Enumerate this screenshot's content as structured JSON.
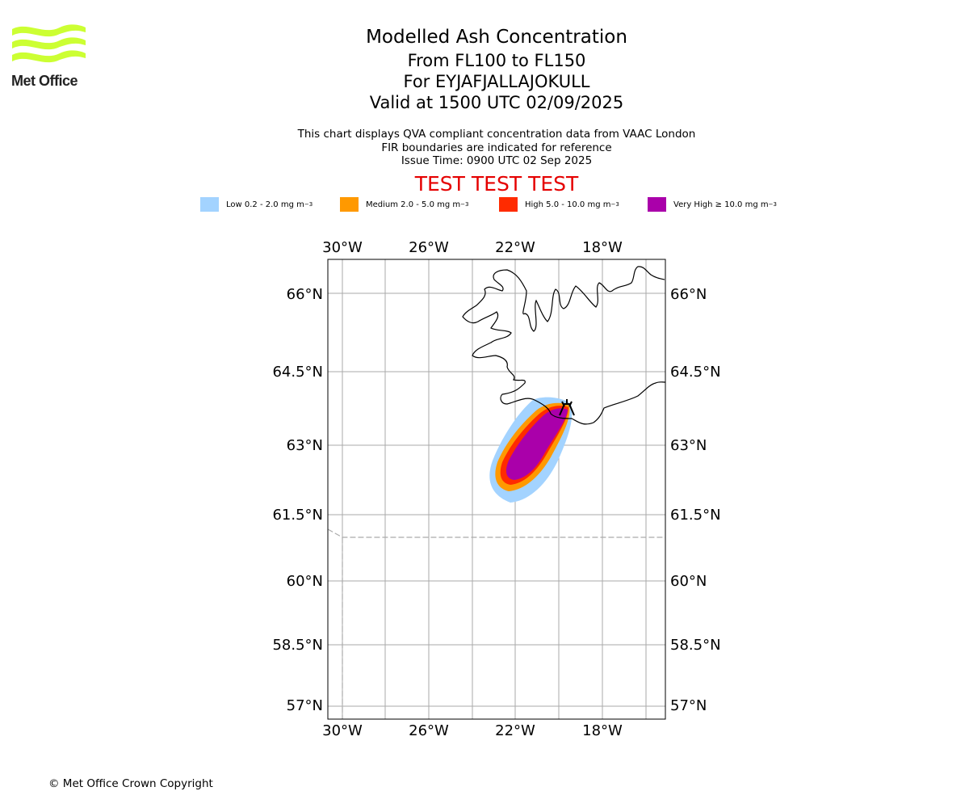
{
  "logo": {
    "name": "Met Office",
    "color": "#ccff33"
  },
  "title": {
    "main": "Modelled Ash Concentration",
    "levels": "From FL100 to FL150",
    "volcano": "For EYJAFJALLAJOKULL",
    "valid": "Valid at 1500 UTC 02/09/2025"
  },
  "description": {
    "line1": "This chart displays QVA compliant concentration data from VAAC London",
    "line2": "FIR boundaries are indicated for reference",
    "line3": "Issue Time: 0900 UTC 02 Sep 2025"
  },
  "test_banner": "TEST TEST TEST",
  "legend": [
    {
      "label": "Low 0.2 - 2.0 mg m",
      "unit_exp": "−3",
      "color": "#a3d3ff"
    },
    {
      "label": "Medium 2.0 - 5.0 mg m",
      "unit_exp": "−3",
      "color": "#ff9900"
    },
    {
      "label": "High 5.0 - 10.0 mg m",
      "unit_exp": "−3",
      "color": "#ff2b00"
    },
    {
      "label": "Very High  ≥  10.0 mg m",
      "unit_exp": "−3",
      "color": "#aa00aa"
    }
  ],
  "map": {
    "lon_range": [
      -31.6,
      -23.8
    ],
    "lat_range": [
      56.75,
      66.7
    ],
    "lon_ticks": [
      "30°W",
      "26°W",
      "22°W",
      "18°W"
    ],
    "lat_ticks": [
      "66°N",
      "64.5°N",
      "63°N",
      "61.5°N",
      "60°N",
      "58.5°N",
      "57°N"
    ],
    "gridline_color": "#aaaaaa",
    "fir_boundary_color": "#aaaaaa",
    "volcano_marker": "volcano-icon"
  },
  "copyright": "© Met Office Crown Copyright"
}
